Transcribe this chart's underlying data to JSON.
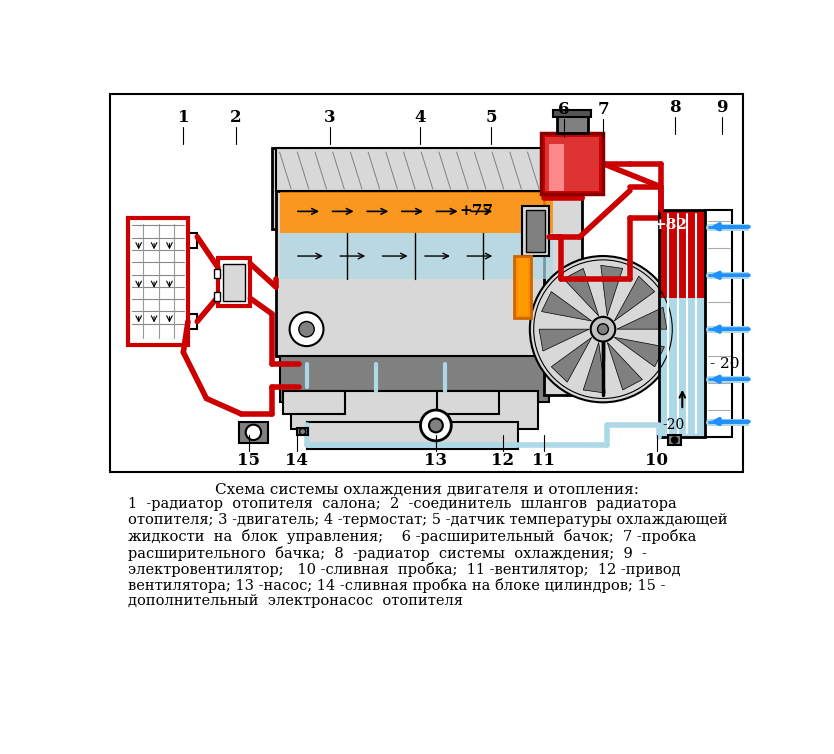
{
  "title": "Схема системы охлаждения двигателя и отопления:",
  "caption_line1": "1  -радиатор  отопителя  салона;  2  -соединитель  шлангов  радиатора",
  "caption_line2": "отопителя; 3 -двигатель; 4 -термостат; 5 -датчик температуры охлаждающей",
  "caption_line3": "жидкости  на  блок  управления;    6 -расширительный  бачок;  7 -пробка",
  "caption_line4": "расширительного  бачка;  8  -радиатор  системы  охлаждения;  9  -",
  "caption_line5": "электровентилятор;   10 -сливная  пробка;  11 -вентилятор;  12 -привод",
  "caption_line6": "вентилятора; 13 -насос; 14 -сливная пробка на блоке цилиндров; 15 -",
  "caption_line7": "дополнительный  электронасос  отопителя",
  "bg": "#FFFFFF",
  "red": "#CC0000",
  "lb": "#ADD8E6",
  "blue": "#1E90FF",
  "orange": "#FF8C00",
  "gray1": "#C0C0C0",
  "gray2": "#808080",
  "gray3": "#D8D8D8",
  "hatching": "#D0D0D0"
}
